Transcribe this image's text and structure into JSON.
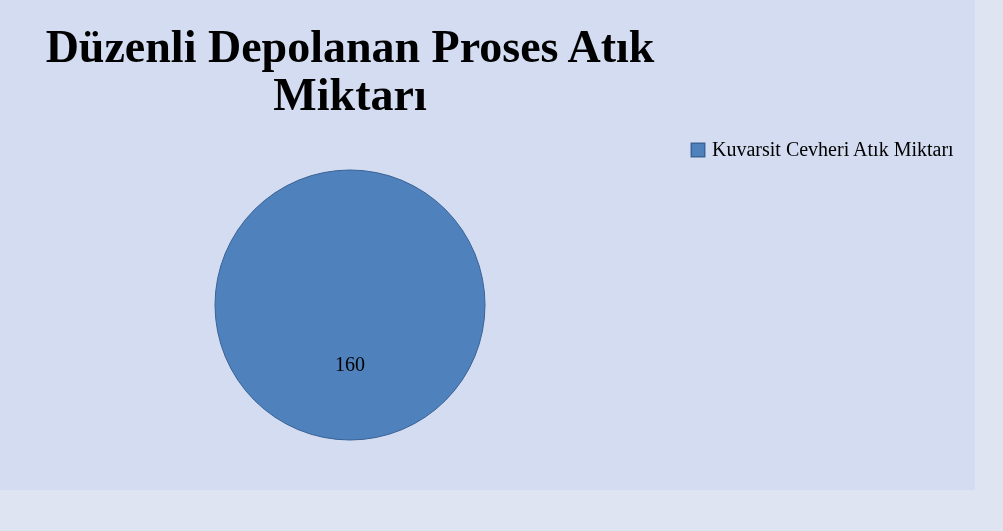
{
  "chart_data": {
    "type": "pie",
    "title": "Düzenli Depolanan Proses Atık Miktarı",
    "categories": [
      "Kuvarsit Cevheri Atık Miktarı"
    ],
    "values": [
      160
    ],
    "colors": [
      "#4f81bd"
    ],
    "data_labels": true,
    "legend": "right"
  }
}
